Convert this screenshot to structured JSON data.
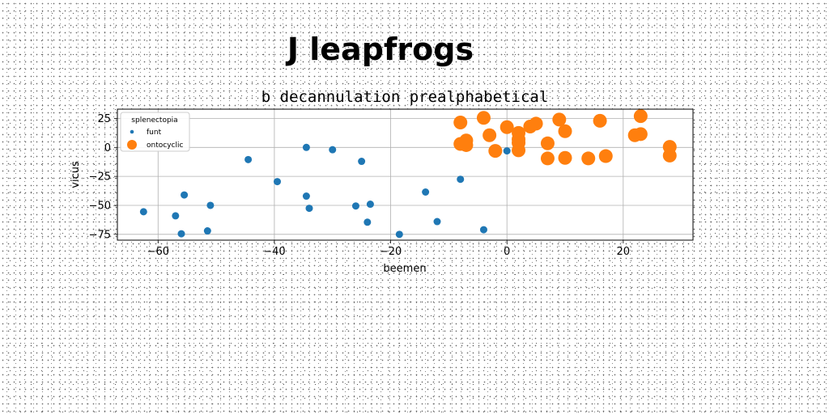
{
  "chart_data": {
    "type": "scatter",
    "suptitle": "J leapfrogs",
    "title": "b decannulation prealphabetical",
    "xlabel": "beemen",
    "ylabel": "vicus",
    "xlim": [
      -67,
      32
    ],
    "ylim": [
      -80,
      33
    ],
    "xticks": [
      -60,
      -40,
      -20,
      0,
      20
    ],
    "xtick_labels": [
      "−60",
      "−40",
      "−20",
      "0",
      "20"
    ],
    "yticks": [
      25,
      0,
      -25,
      -50,
      -75
    ],
    "ytick_labels": [
      "25",
      "0",
      "−25",
      "−50",
      "−75"
    ],
    "grid": true,
    "legend": {
      "title": "splenectopia",
      "placement": "upper-left"
    },
    "series": [
      {
        "name": "funt",
        "color": "#1f77b4",
        "marker_size": "small",
        "points": [
          [
            -62.5,
            -55.5
          ],
          [
            -57,
            -59
          ],
          [
            -56,
            -74.5
          ],
          [
            -55.5,
            -41
          ],
          [
            -51,
            -50
          ],
          [
            -51.5,
            -72
          ],
          [
            -44.5,
            -10.5
          ],
          [
            -39.5,
            -29.5
          ],
          [
            -34.5,
            0
          ],
          [
            -30,
            -2
          ],
          [
            -25,
            -12
          ],
          [
            -34.5,
            -42
          ],
          [
            -34,
            -52.5
          ],
          [
            -26,
            -50.5
          ],
          [
            -24,
            -64.5
          ],
          [
            -23.5,
            -49
          ],
          [
            -18.5,
            -75
          ],
          [
            -14,
            -38.5
          ],
          [
            -12,
            -64
          ],
          [
            -8,
            -27.5
          ],
          [
            -4,
            -71
          ],
          [
            0,
            -3
          ]
        ]
      },
      {
        "name": "ontocyclic",
        "color": "#ff7f0e",
        "marker_size": "large",
        "points": [
          [
            -8,
            21.5
          ],
          [
            -8,
            3
          ],
          [
            -7,
            6
          ],
          [
            -7,
            2
          ],
          [
            -4,
            25.5
          ],
          [
            -3,
            10.5
          ],
          [
            -2,
            -3
          ],
          [
            0,
            17.5
          ],
          [
            2,
            12.5
          ],
          [
            2,
            7
          ],
          [
            2,
            4
          ],
          [
            2,
            -2.5
          ],
          [
            4,
            18
          ],
          [
            5,
            20.5
          ],
          [
            7,
            3.5
          ],
          [
            7,
            -9.5
          ],
          [
            9,
            24
          ],
          [
            10,
            14
          ],
          [
            10,
            -9
          ],
          [
            14,
            -9.5
          ],
          [
            16,
            23
          ],
          [
            17,
            -7.5
          ],
          [
            22,
            10.5
          ],
          [
            23,
            27
          ],
          [
            23,
            11.5
          ],
          [
            28,
            0.5
          ],
          [
            28,
            -7
          ]
        ]
      }
    ]
  }
}
